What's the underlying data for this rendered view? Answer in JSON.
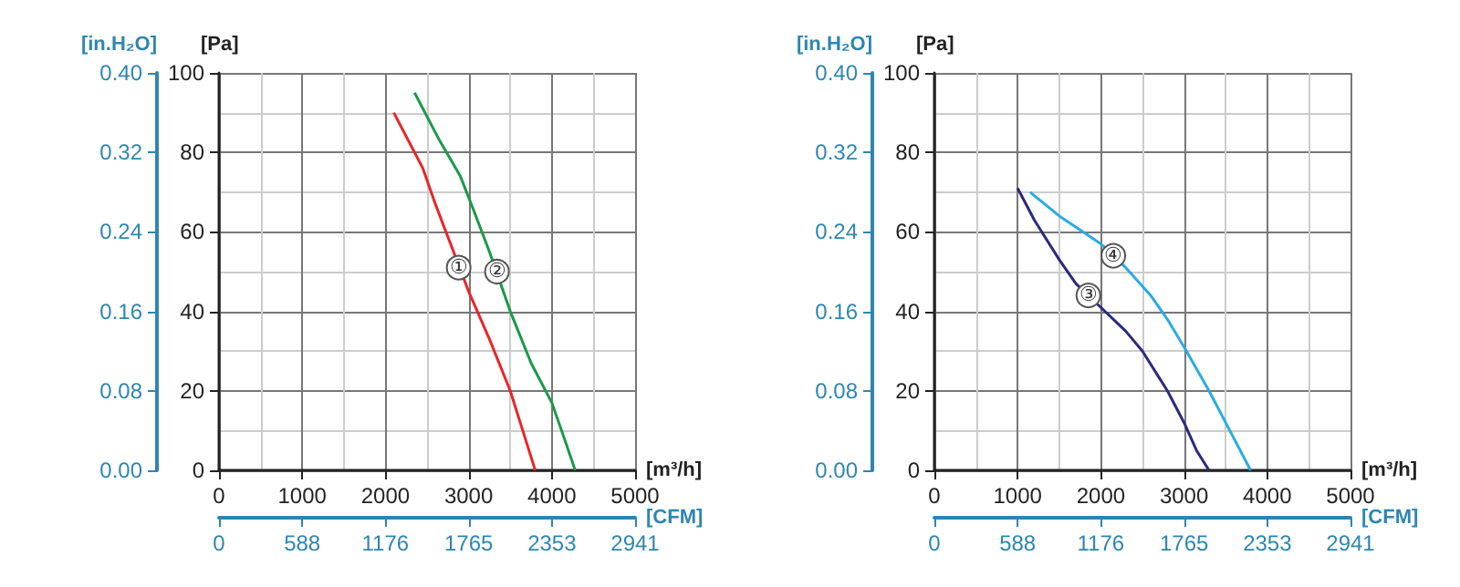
{
  "chart_data": [
    {
      "type": "line",
      "xlabel": "[m³/h]",
      "ylabel": "[Pa]",
      "y2label": "[in.H₂O]",
      "x2label": "[CFM]",
      "xlim": [
        0,
        5000
      ],
      "xticks": [
        0,
        1000,
        2000,
        3000,
        4000,
        5000
      ],
      "ylim": [
        0,
        100
      ],
      "yticks": [
        0,
        20,
        40,
        60,
        80,
        100
      ],
      "y2lim": [
        0,
        0.4
      ],
      "y2ticks": [
        {
          "value": 0,
          "label": "0.00"
        },
        {
          "value": 0.08,
          "label": "0.08"
        },
        {
          "value": 0.16,
          "label": "0.16"
        },
        {
          "value": 0.24,
          "label": "0.24"
        },
        {
          "value": 0.32,
          "label": "0.32"
        },
        {
          "value": 0.4,
          "label": "0.40"
        }
      ],
      "x2lim": [
        0,
        2941
      ],
      "x2ticks": [
        0,
        588,
        1176,
        1765,
        2353,
        2941
      ],
      "grid": true,
      "series": [
        {
          "color": "#e8262a",
          "x": [
            2100,
            2300,
            2450,
            2600,
            2800,
            3000,
            3250,
            3500,
            3650,
            3800
          ],
          "values": [
            90,
            82,
            76,
            67,
            56,
            45,
            33,
            20,
            10,
            0
          ]
        },
        {
          "color": "#1a9a48",
          "x": [
            2350,
            2650,
            2900,
            3050,
            3250,
            3500,
            3750,
            4000,
            4150,
            4280
          ],
          "values": [
            95,
            83,
            74,
            66,
            55,
            40,
            27,
            17,
            8,
            0
          ]
        }
      ],
      "annotations": [
        {
          "text": "①",
          "x": 2880,
          "y": 51
        },
        {
          "text": "②",
          "x": 3340,
          "y": 50
        }
      ]
    },
    {
      "type": "line",
      "xlabel": "[m³/h]",
      "ylabel": "[Pa]",
      "y2label": "[in.H₂O]",
      "x2label": "[CFM]",
      "xlim": [
        0,
        5000
      ],
      "xticks": [
        0,
        1000,
        2000,
        3000,
        4000,
        5000
      ],
      "ylim": [
        0,
        100
      ],
      "yticks": [
        0,
        20,
        40,
        60,
        80,
        100
      ],
      "y2lim": [
        0,
        0.4
      ],
      "y2ticks": [
        {
          "value": 0,
          "label": "0.00"
        },
        {
          "value": 0.08,
          "label": "0.08"
        },
        {
          "value": 0.16,
          "label": "0.16"
        },
        {
          "value": 0.24,
          "label": "0.24"
        },
        {
          "value": 0.32,
          "label": "0.32"
        },
        {
          "value": 0.4,
          "label": "0.40"
        }
      ],
      "x2lim": [
        0,
        2941
      ],
      "x2ticks": [
        0,
        588,
        1176,
        1765,
        2353,
        2941
      ],
      "grid": true,
      "series": [
        {
          "color": "#2b2a7e",
          "x": [
            1000,
            1200,
            1500,
            1700,
            2000,
            2300,
            2500,
            2800,
            3000,
            3150,
            3300
          ],
          "values": [
            71,
            63,
            53,
            47,
            41,
            35,
            30,
            20,
            12,
            5,
            0
          ]
        },
        {
          "color": "#29abe2",
          "x": [
            1150,
            1500,
            2000,
            2300,
            2600,
            2800,
            3000,
            3300,
            3600,
            3800
          ],
          "values": [
            70,
            64,
            57,
            51,
            44,
            38,
            31,
            20,
            8,
            0
          ]
        }
      ],
      "annotations": [
        {
          "text": "③",
          "x": 1850,
          "y": 44
        },
        {
          "text": "④",
          "x": 2150,
          "y": 54
        }
      ]
    }
  ]
}
